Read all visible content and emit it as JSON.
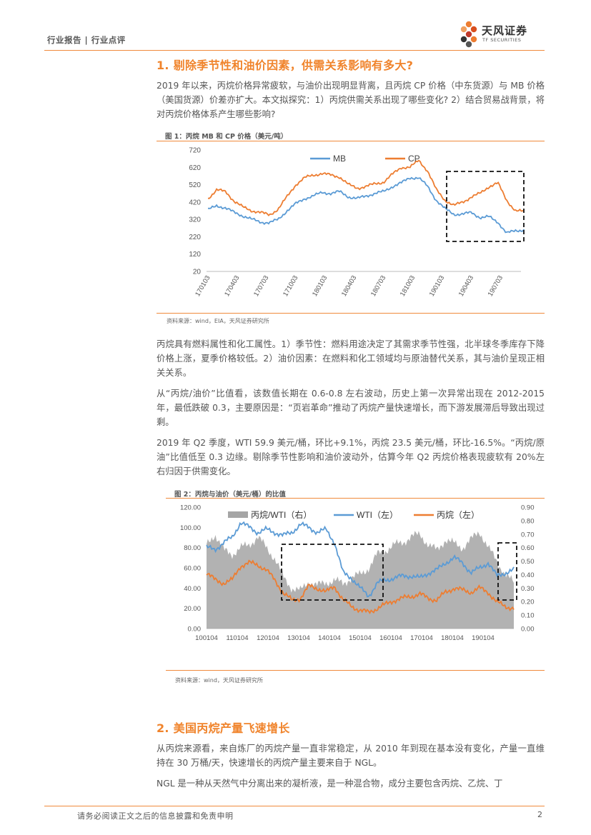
{
  "header": {
    "category": "行业报告 | 行业点评",
    "logo_cn": "天风证券",
    "logo_en": "TF SECURITIES"
  },
  "section1": {
    "title": "1. 剔除季节性和油价因素，供需关系影响有多大?",
    "intro": "2019 年以来，丙烷价格异常疲软，与油价出现明显背离，且丙烷 CP 价格（中东货源）与 MB 价格（美国货源）价差亦扩大。本文拟探究：1）丙烷供需关系出现了哪些变化? 2）结合贸易战背景，将对丙烷价格体系产生哪些影响?"
  },
  "figure1": {
    "title": "图 1：丙烷 MB 和 CP 价格（美元/吨）",
    "source": "资料来源：wind，EIA，天风证券研究所"
  },
  "paragraphs": {
    "p1": "丙烷具有燃料属性和化工属性。1）季节性：燃料用途决定了其需求季节性强，北半球冬季库存下降价格上涨，夏季价格较低。2）油价因素：在燃料和化工领域均与原油替代关系，其与油价呈现正相关关系。",
    "p2": "从“丙烷/油价”比值看，该数值长期在 0.6-0.8 左右波动，历史上第一次异常出现在 2012-2015 年，最低跌破 0.3，主要原因是：“页岩革命”推动了丙烷产量快速增长，而下游发展滞后导致出现过剩。",
    "p3": "2019 年 Q2 季度，WTI 59.9 美元/桶，环比+9.1%，丙烷 23.5 美元/桶，环比-16.5%。“丙烷/原油”比值低至 0.3 边缘。剔除季节性影响和油价波动外，估算今年 Q2 丙烷价格表现疲软有 20%左右归因于供需变化。"
  },
  "figure2": {
    "title": "图 2：丙烷与油价（美元/桶）的比值",
    "source": "资料来源：wind，天风证券研究所"
  },
  "section2": {
    "title": "2. 美国丙烷产量飞速增长",
    "p1": "从丙烷来源看，来自炼厂的丙烷产量一直非常稳定，从 2010 年到现在基本没有变化，产量一直维持在 30 万桶/天，快速增长的丙烷产量主要来自于 NGL。",
    "p2": "NGL 是一种从天然气中分离出来的凝析液，是一种混合物，成分主要包含丙烷、乙烷、丁"
  },
  "footer": {
    "disclaimer": "请务必阅读正文之后的信息披露和免责申明",
    "page": "2"
  },
  "colors": {
    "accent": "#f0842c",
    "mb": "#5b9bd5",
    "cp": "#ed7d31",
    "ratio": "#a5a5a5"
  },
  "chart_data": [
    {
      "type": "line",
      "x_ticks": [
        "170103",
        "170403",
        "170703",
        "171003",
        "180103",
        "180403",
        "180703",
        "181003",
        "190103",
        "190403",
        "190703"
      ],
      "y_ticks": [
        "720",
        "620",
        "520",
        "420",
        "320",
        "220",
        "120",
        "20"
      ],
      "ylim": [
        20,
        720
      ],
      "legend_position": "top-center",
      "series": [
        {
          "name": "MB",
          "color": "#5b9bd5",
          "values": [
            375,
            400,
            385,
            360,
            340,
            320,
            305,
            300,
            320,
            370,
            410,
            440,
            455,
            475,
            470,
            480,
            450,
            440,
            455,
            470,
            480,
            510,
            530,
            560,
            560,
            510,
            430,
            380,
            350,
            350,
            360,
            330,
            335,
            305,
            240,
            255,
            260
          ]
        },
        {
          "name": "CP",
          "color": "#ed7d31",
          "values": [
            440,
            490,
            480,
            425,
            390,
            370,
            360,
            345,
            380,
            450,
            520,
            560,
            575,
            585,
            575,
            565,
            520,
            500,
            510,
            525,
            535,
            580,
            620,
            620,
            660,
            600,
            490,
            430,
            400,
            420,
            450,
            470,
            510,
            530,
            430,
            370,
            365
          ]
        }
      ]
    },
    {
      "type": "area+line",
      "x_ticks": [
        "100104",
        "110104",
        "120104",
        "130104",
        "140104",
        "150104",
        "160104",
        "170104",
        "180104",
        "190104"
      ],
      "y_left_ticks": [
        "120.00",
        "100.00",
        "80.00",
        "60.00",
        "40.00",
        "20.00",
        "0.00"
      ],
      "y_right_ticks": [
        "0.90",
        "0.80",
        "0.70",
        "0.60",
        "0.50",
        "0.40",
        "0.30",
        "0.20",
        "0.10",
        "0.00"
      ],
      "ylim_left": [
        0,
        120
      ],
      "ylim_right": [
        0,
        0.9
      ],
      "legend_position": "top-center",
      "series": [
        {
          "name": "丙烷/WTI（右）",
          "axis": "right",
          "color": "#a5a5a5",
          "values": [
            0.62,
            0.7,
            0.58,
            0.55,
            0.6,
            0.62,
            0.68,
            0.6,
            0.52,
            0.38,
            0.3,
            0.28,
            0.35,
            0.32,
            0.34,
            0.36,
            0.33,
            0.38,
            0.4,
            0.45,
            0.55,
            0.58,
            0.62,
            0.64,
            0.68,
            0.7,
            0.62,
            0.58,
            0.66,
            0.63,
            0.6,
            0.66,
            0.72,
            0.6,
            0.5,
            0.4,
            0.34
          ]
        },
        {
          "name": "WTI（左）",
          "axis": "left",
          "color": "#5b9bd5",
          "values": [
            80,
            78,
            85,
            90,
            105,
            100,
            95,
            98,
            95,
            92,
            95,
            103,
            100,
            95,
            98,
            85,
            55,
            50,
            40,
            32,
            45,
            48,
            50,
            52,
            52,
            50,
            55,
            58,
            65,
            70,
            65,
            55,
            60,
            65,
            52,
            55,
            58
          ]
        },
        {
          "name": "丙烷（左）",
          "axis": "left",
          "color": "#ed7d31",
          "values": [
            55,
            48,
            45,
            48,
            62,
            65,
            63,
            58,
            48,
            35,
            28,
            30,
            42,
            40,
            36,
            42,
            28,
            22,
            18,
            16,
            20,
            24,
            28,
            30,
            32,
            34,
            30,
            28,
            36,
            40,
            38,
            36,
            40,
            36,
            26,
            22,
            20
          ]
        }
      ]
    }
  ]
}
